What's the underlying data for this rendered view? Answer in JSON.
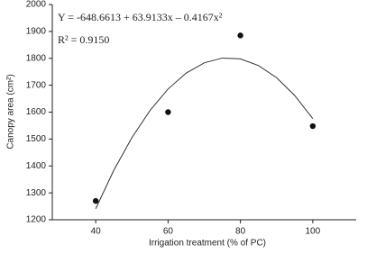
{
  "chart_data": {
    "type": "scatter",
    "xlabel": "Irrigation treatment (% of PC)",
    "ylabel": "Canopy area (cm²)",
    "annotations": [
      "Y = -648.6613 + 63.9133x – 0.4167x²",
      "R² = 0.9150"
    ],
    "xlim": [
      28,
      112
    ],
    "xticks": [
      40,
      60,
      80,
      100
    ],
    "ylim": [
      1200,
      2000
    ],
    "yticks": [
      1200,
      1300,
      1400,
      1500,
      1600,
      1700,
      1800,
      1900,
      2000
    ],
    "series": [
      {
        "type": "scatter",
        "color": "#111111",
        "x": [
          40,
          60,
          80,
          100
        ],
        "values": [
          1270,
          1600,
          1885,
          1548
        ]
      },
      {
        "type": "line",
        "color": "#333333",
        "x": [
          40,
          45,
          50,
          55,
          60,
          65,
          70,
          75,
          80,
          85,
          90,
          95,
          100
        ],
        "values": [
          1241,
          1384,
          1505,
          1606,
          1686,
          1745,
          1783,
          1801,
          1798,
          1773,
          1728,
          1662,
          1576
        ]
      }
    ]
  }
}
